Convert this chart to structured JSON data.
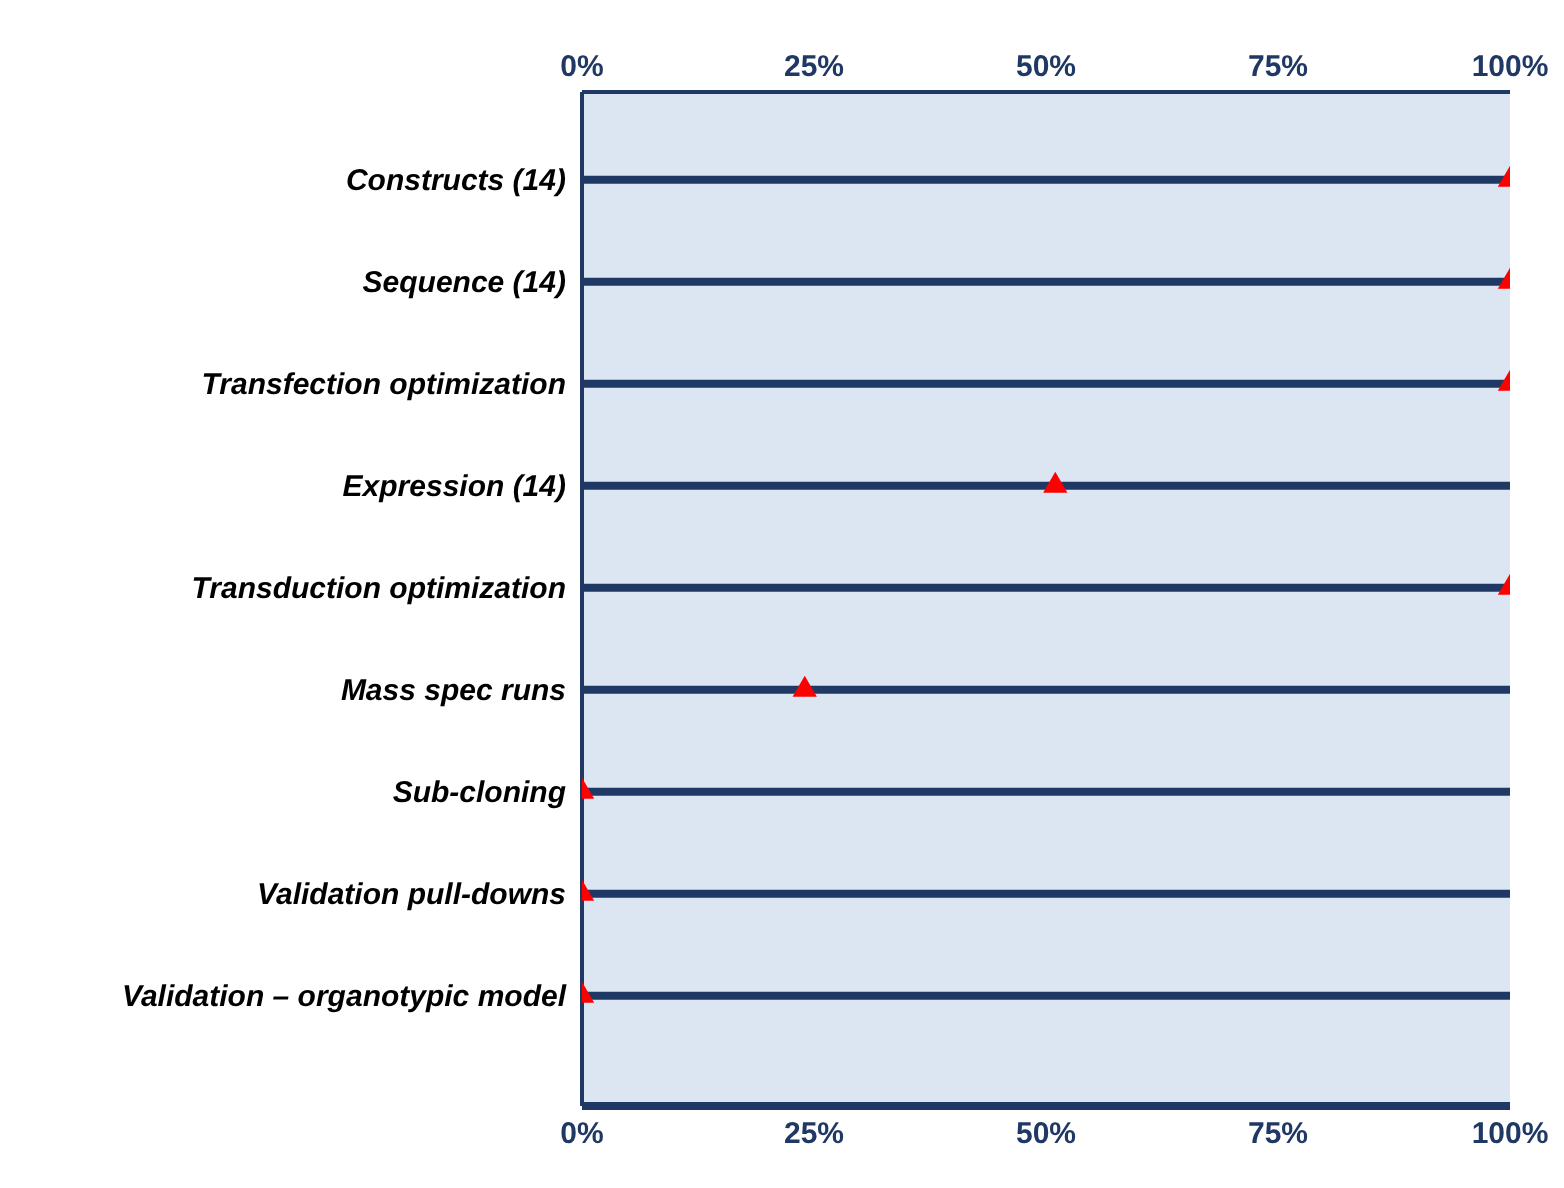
{
  "chart_data": {
    "type": "scatter",
    "orientation": "horizontal",
    "marker": "triangle",
    "grid": "y",
    "categories": [
      "Constructs (14)",
      "Sequence (14)",
      "Transfection optimization",
      "Expression (14)",
      "Transduction optimization",
      "Mass spec runs",
      "Sub-cloning",
      "Validation pull-downs",
      "Validation – organotypic model"
    ],
    "values": [
      100,
      100,
      100,
      51,
      100,
      24,
      0,
      0,
      0
    ],
    "color": "#ff0000",
    "xlim": [
      0,
      100
    ],
    "xticks": [
      {
        "value": 0,
        "label": "0%"
      },
      {
        "value": 25,
        "label": "25%"
      },
      {
        "value": 50,
        "label": "50%"
      },
      {
        "value": 75,
        "label": "75%"
      },
      {
        "value": 100,
        "label": "100%"
      }
    ],
    "x2lim": [
      0,
      100
    ],
    "x2ticks": [
      {
        "value": 0,
        "label": "0%"
      },
      {
        "value": 25,
        "label": "25%"
      },
      {
        "value": 50,
        "label": "50%"
      },
      {
        "value": 75,
        "label": "75%"
      },
      {
        "value": 100,
        "label": "100%"
      }
    ]
  }
}
